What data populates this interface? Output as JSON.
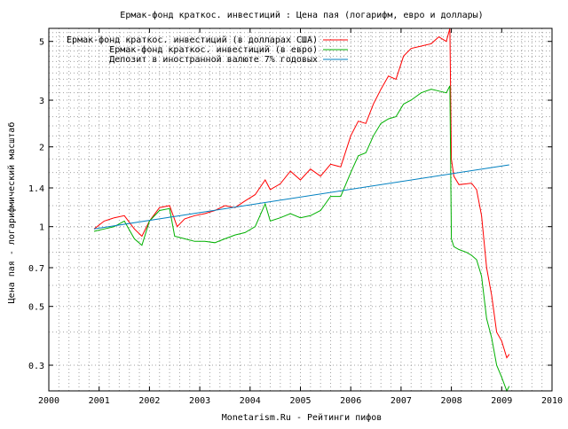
{
  "chart_data": {
    "type": "line",
    "title": "Ермак-фонд краткос. инвестиций : Цена пая (логарифм, евро и доллары)",
    "xlabel": "Monetarism.Ru - Рейтинги пифов",
    "ylabel": "Цена пая - логарифмический масштаб",
    "x_scale": "linear",
    "y_scale": "log",
    "xlim": [
      2000,
      2010
    ],
    "ylim": [
      0.24,
      5.6
    ],
    "x_ticks": [
      "2000",
      "2001",
      "2002",
      "2003",
      "2004",
      "2005",
      "2006",
      "2007",
      "2008",
      "2009",
      "2010"
    ],
    "y_ticks": [
      "0.3",
      "0.5",
      "0.7",
      "1",
      "1.4",
      "2",
      "3",
      "5"
    ],
    "grid": true,
    "legend_position": "top-left",
    "series": [
      {
        "name": "Ермак-фонд краткос. инвестиций (в долларах США)",
        "color": "#ff0000",
        "x": [
          2000.9,
          2001.1,
          2001.3,
          2001.5,
          2001.7,
          2001.85,
          2002.0,
          2002.2,
          2002.4,
          2002.55,
          2002.7,
          2002.9,
          2003.1,
          2003.3,
          2003.5,
          2003.7,
          2003.9,
          2004.1,
          2004.3,
          2004.4,
          2004.6,
          2004.8,
          2005.0,
          2005.2,
          2005.4,
          2005.6,
          2005.8,
          2006.0,
          2006.15,
          2006.3,
          2006.45,
          2006.6,
          2006.75,
          2006.9,
          2007.05,
          2007.2,
          2007.4,
          2007.6,
          2007.75,
          2007.9,
          2007.97,
          2008.0,
          2008.05,
          2008.15,
          2008.3,
          2008.4,
          2008.5,
          2008.6,
          2008.7,
          2008.8,
          2008.9,
          2009.0,
          2009.1,
          2009.15
        ],
        "y": [
          0.98,
          1.05,
          1.08,
          1.1,
          0.98,
          0.92,
          1.05,
          1.18,
          1.2,
          1.0,
          1.07,
          1.1,
          1.12,
          1.15,
          1.2,
          1.18,
          1.25,
          1.32,
          1.5,
          1.38,
          1.45,
          1.62,
          1.5,
          1.65,
          1.55,
          1.72,
          1.68,
          2.2,
          2.5,
          2.45,
          2.9,
          3.3,
          3.7,
          3.6,
          4.4,
          4.7,
          4.8,
          4.9,
          5.2,
          5.0,
          5.6,
          1.8,
          1.55,
          1.44,
          1.45,
          1.46,
          1.38,
          1.1,
          0.7,
          0.55,
          0.4,
          0.37,
          0.32,
          0.33
        ]
      },
      {
        "name": "Ермак-фонд краткос. инвестиций (в евро)",
        "color": "#00b000",
        "x": [
          2000.9,
          2001.1,
          2001.3,
          2001.5,
          2001.7,
          2001.85,
          2002.0,
          2002.2,
          2002.4,
          2002.5,
          2002.7,
          2002.9,
          2003.1,
          2003.3,
          2003.5,
          2003.7,
          2003.9,
          2004.1,
          2004.3,
          2004.4,
          2004.6,
          2004.8,
          2005.0,
          2005.2,
          2005.4,
          2005.6,
          2005.8,
          2006.0,
          2006.15,
          2006.3,
          2006.45,
          2006.6,
          2006.75,
          2006.9,
          2007.05,
          2007.2,
          2007.4,
          2007.6,
          2007.75,
          2007.9,
          2007.97,
          2008.0,
          2008.05,
          2008.15,
          2008.3,
          2008.4,
          2008.5,
          2008.6,
          2008.7,
          2008.8,
          2008.9,
          2009.0,
          2009.1,
          2009.15
        ],
        "y": [
          0.96,
          0.98,
          1.0,
          1.05,
          0.9,
          0.85,
          1.05,
          1.15,
          1.17,
          0.92,
          0.9,
          0.88,
          0.88,
          0.87,
          0.9,
          0.93,
          0.95,
          1.0,
          1.22,
          1.05,
          1.08,
          1.12,
          1.08,
          1.1,
          1.15,
          1.3,
          1.3,
          1.6,
          1.85,
          1.9,
          2.2,
          2.45,
          2.55,
          2.6,
          2.9,
          3.0,
          3.2,
          3.3,
          3.25,
          3.2,
          3.4,
          0.9,
          0.84,
          0.82,
          0.8,
          0.78,
          0.75,
          0.65,
          0.45,
          0.38,
          0.3,
          0.27,
          0.24,
          0.25
        ]
      },
      {
        "name": "Депозит в иностранной валюте 7% годовых",
        "color": "#0080c0",
        "x": [
          2000.9,
          2009.15
        ],
        "y": [
          0.98,
          1.71
        ]
      }
    ]
  }
}
